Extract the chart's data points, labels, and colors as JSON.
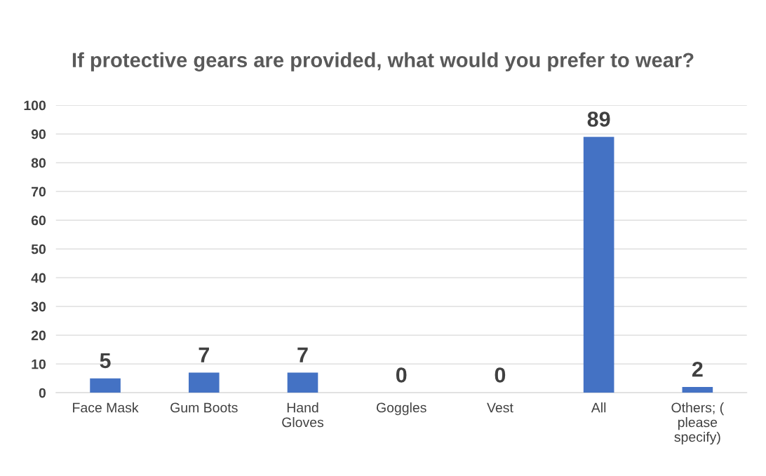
{
  "chart_data": {
    "type": "bar",
    "title": "If protective gears are provided, what would you prefer to wear?",
    "categories": [
      "Face Mask",
      "Gum Boots",
      "Hand Gloves",
      "Goggles",
      "Vest",
      "All",
      "Others; ( please specify)"
    ],
    "values": [
      5,
      7,
      7,
      0,
      0,
      89,
      2
    ],
    "color": "#4472c4",
    "ylim": [
      0,
      100
    ],
    "yticks": [
      0,
      10,
      20,
      30,
      40,
      50,
      60,
      70,
      80,
      90,
      100
    ],
    "grid": "y",
    "data_labels": true
  }
}
